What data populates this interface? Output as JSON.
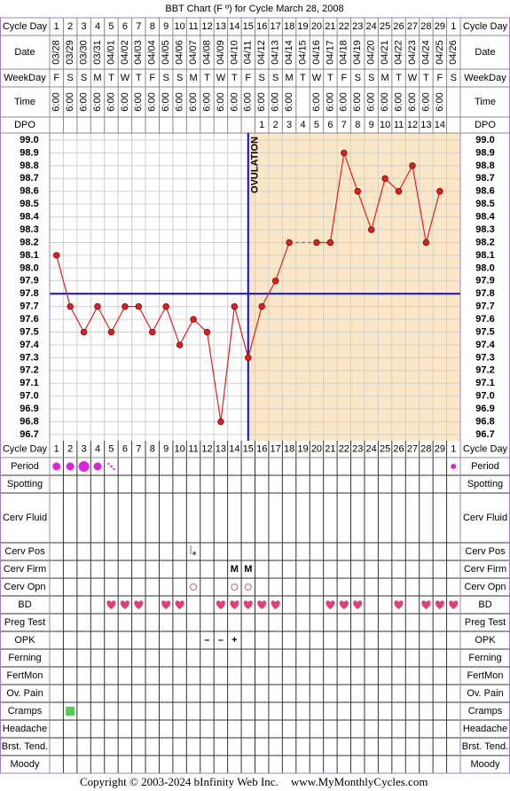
{
  "chart_data": {
    "type": "line",
    "title": "BBT Chart (F º) for Cycle March 28, 2008",
    "row_labels": {
      "cycle_day": "Cycle Day",
      "date": "Date",
      "weekday": "WeekDay",
      "time": "Time",
      "dpo": "DPO"
    },
    "categories": [
      1,
      2,
      3,
      4,
      5,
      6,
      7,
      8,
      9,
      10,
      11,
      12,
      13,
      14,
      15,
      16,
      17,
      18,
      19,
      20,
      21,
      22,
      23,
      24,
      25,
      26,
      27,
      28,
      29,
      1
    ],
    "dates": [
      "03/28",
      "03/29",
      "03/30",
      "03/31",
      "04/01",
      "04/02",
      "04/03",
      "04/04",
      "04/05",
      "04/06",
      "04/07",
      "04/08",
      "04/09",
      "04/10",
      "04/11",
      "04/12",
      "04/13",
      "04/14",
      "04/15",
      "04/16",
      "04/17",
      "04/18",
      "04/19",
      "04/20",
      "04/21",
      "04/22",
      "04/23",
      "04/24",
      "04/25",
      "04/26"
    ],
    "weekdays": [
      "F",
      "S",
      "S",
      "M",
      "T",
      "W",
      "T",
      "F",
      "S",
      "S",
      "M",
      "T",
      "W",
      "T",
      "F",
      "S",
      "S",
      "M",
      "T",
      "W",
      "T",
      "F",
      "S",
      "S",
      "M",
      "T",
      "W",
      "T",
      "F",
      "S"
    ],
    "times": [
      "6:00",
      "6:00",
      "6:00",
      "6:00",
      "6:00",
      "6:00",
      "6:00",
      "6:00",
      "6:00",
      "6:00",
      "6:00",
      "6:00",
      "6:00",
      "6:00",
      "6:00",
      "6:00",
      "6:00",
      "6:00",
      null,
      "6:00",
      "6:00",
      "6:00",
      "6:00",
      "6:00",
      "6:00",
      "6:00",
      "6:00",
      "6:00",
      "6:00",
      null
    ],
    "dpo": [
      null,
      null,
      null,
      null,
      null,
      null,
      null,
      null,
      null,
      null,
      null,
      null,
      null,
      null,
      null,
      1,
      2,
      3,
      4,
      5,
      6,
      7,
      8,
      9,
      10,
      11,
      12,
      13,
      14,
      null
    ],
    "values": [
      98.1,
      97.7,
      97.5,
      97.7,
      97.5,
      97.7,
      97.7,
      97.5,
      97.7,
      97.4,
      97.6,
      97.5,
      96.8,
      97.7,
      97.3,
      97.7,
      97.9,
      98.2,
      null,
      98.2,
      98.2,
      98.9,
      98.6,
      98.3,
      98.7,
      98.6,
      98.8,
      98.2,
      98.6,
      null
    ],
    "color": "#e02020",
    "ylim": [
      96.7,
      99.0
    ],
    "yticks": [
      96.7,
      96.8,
      96.9,
      {
        "value": 97.0,
        "label": "97.0"
      },
      97.1,
      97.2,
      97.3,
      97.4,
      97.5,
      97.6,
      97.7,
      97.8,
      97.9,
      {
        "value": 98.0,
        "label": "98.0"
      },
      98.1,
      98.2,
      98.3,
      98.4,
      98.5,
      98.6,
      98.7,
      98.8,
      98.9,
      {
        "value": 99.0,
        "label": "99.0"
      }
    ],
    "grid": true,
    "coverline": {
      "value": 97.8,
      "color": "#1010c0"
    },
    "ovulation": {
      "label": "OVULATION",
      "day": 15,
      "color": "#1010c0",
      "shade": "#fbe7c6"
    },
    "rows": [
      {
        "label": "Period",
        "symbols": [
          "dot-m",
          "dot-m",
          "dot-l",
          "dot-m",
          "dots",
          null,
          null,
          null,
          null,
          null,
          null,
          null,
          null,
          null,
          null,
          null,
          null,
          null,
          null,
          null,
          null,
          null,
          null,
          null,
          null,
          null,
          null,
          null,
          null,
          "dot-s"
        ]
      },
      {
        "label": "Spotting"
      },
      {
        "label": "Cerv Fluid"
      },
      {
        "label": "Cerv Pos",
        "symbols": [
          null,
          null,
          null,
          null,
          null,
          null,
          null,
          null,
          null,
          null,
          "low",
          null,
          null,
          null,
          null,
          null,
          null,
          null,
          null,
          null,
          null,
          null,
          null,
          null,
          null,
          null,
          null,
          null,
          null,
          null
        ]
      },
      {
        "label": "Cerv Firm",
        "texts": [
          null,
          null,
          null,
          null,
          null,
          null,
          null,
          null,
          null,
          null,
          null,
          null,
          null,
          "M",
          "M",
          null,
          null,
          null,
          null,
          null,
          null,
          null,
          null,
          null,
          null,
          null,
          null,
          null,
          null,
          null
        ]
      },
      {
        "label": "Cerv Opn",
        "symbols": [
          null,
          null,
          null,
          null,
          null,
          null,
          null,
          null,
          null,
          null,
          "circle",
          null,
          null,
          "circle",
          "circle",
          null,
          null,
          null,
          null,
          null,
          null,
          null,
          null,
          null,
          null,
          null,
          null,
          null,
          null,
          null
        ]
      },
      {
        "label": "BD",
        "symbols": [
          null,
          null,
          null,
          null,
          "heart",
          "heart",
          "heart",
          null,
          "heart",
          "heart",
          null,
          null,
          "heart",
          "heart",
          "heart",
          "heart",
          "heart",
          null,
          null,
          null,
          "heart",
          "heart",
          "heart",
          null,
          null,
          "heart",
          null,
          "heart",
          "heart",
          "heart"
        ]
      },
      {
        "label": "Preg Test"
      },
      {
        "label": "OPK",
        "texts": [
          null,
          null,
          null,
          null,
          null,
          null,
          null,
          null,
          null,
          null,
          null,
          "–",
          "–",
          "+",
          null,
          null,
          null,
          null,
          null,
          null,
          null,
          null,
          null,
          null,
          null,
          null,
          null,
          null,
          null,
          null
        ]
      },
      {
        "label": "Ferning"
      },
      {
        "label": "FertMon"
      },
      {
        "label": "Ov. Pain"
      },
      {
        "label": "Cramps",
        "symbols": [
          null,
          "square",
          null,
          null,
          null,
          null,
          null,
          null,
          null,
          null,
          null,
          null,
          null,
          null,
          null,
          null,
          null,
          null,
          null,
          null,
          null,
          null,
          null,
          null,
          null,
          null,
          null,
          null,
          null,
          null
        ]
      },
      {
        "label": "Headache"
      },
      {
        "label": "Brst. Tend."
      },
      {
        "label": "Moody"
      }
    ]
  },
  "footer": {
    "copyright": "Copyright © 2003-2024 bInfinity Web Inc.",
    "site": "www.MyMonthlyCycles.com"
  }
}
